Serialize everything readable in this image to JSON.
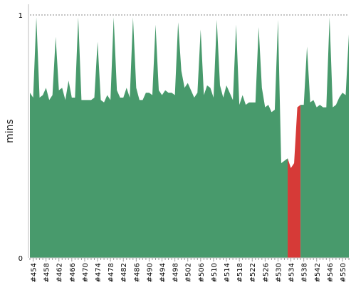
{
  "chart_data": {
    "type": "area",
    "ylabel": "mins",
    "ylim": [
      0,
      1
    ],
    "y_ticks": [
      "0",
      "1"
    ],
    "reference_line": 1,
    "grid": false,
    "x_tick_labels": [
      "#454",
      "#458",
      "#462",
      "#466",
      "#470",
      "#474",
      "#478",
      "#482",
      "#486",
      "#490",
      "#494",
      "#498",
      "#502",
      "#506",
      "#510",
      "#514",
      "#518",
      "#522",
      "#526",
      "#530",
      "#534",
      "#538",
      "#542",
      "#546",
      "#550"
    ],
    "colors": {
      "ok": "#489a6c",
      "fail": "#d63a37",
      "reference": "#8a8a8a"
    },
    "series": [
      {
        "x": [
          453,
          454,
          455,
          456,
          457,
          458,
          459,
          460,
          461,
          462,
          463,
          464,
          465,
          466,
          467,
          468,
          469,
          470,
          471,
          472,
          473,
          474,
          475,
          476,
          477,
          478,
          479,
          480,
          481,
          482,
          483,
          484,
          485,
          486,
          487,
          488,
          489,
          490,
          491,
          492,
          493,
          494,
          495,
          496,
          497,
          498,
          499,
          500,
          501,
          502,
          503,
          504,
          505,
          506,
          507,
          508,
          509,
          510,
          511,
          512,
          513,
          514,
          515,
          516,
          517,
          518,
          519,
          520,
          521,
          522,
          523,
          524,
          525,
          526,
          527,
          528,
          529,
          530,
          531,
          532,
          533,
          534,
          535,
          536,
          537,
          538,
          539,
          540,
          541,
          542,
          543,
          544,
          545,
          546,
          547,
          548,
          549,
          550,
          551,
          552
        ],
        "values": [
          0.68,
          0.66,
          0.99,
          0.66,
          0.67,
          0.7,
          0.65,
          0.67,
          0.91,
          0.69,
          0.7,
          0.65,
          0.73,
          0.66,
          0.66,
          0.99,
          0.65,
          0.65,
          0.65,
          0.65,
          0.66,
          0.89,
          0.65,
          0.64,
          0.67,
          0.65,
          0.99,
          0.69,
          0.66,
          0.66,
          0.7,
          0.66,
          0.99,
          0.7,
          0.65,
          0.65,
          0.68,
          0.68,
          0.67,
          0.96,
          0.69,
          0.67,
          0.69,
          0.68,
          0.68,
          0.67,
          0.97,
          0.77,
          0.7,
          0.72,
          0.69,
          0.66,
          0.68,
          0.94,
          0.67,
          0.71,
          0.7,
          0.66,
          0.98,
          0.71,
          0.66,
          0.71,
          0.68,
          0.65,
          0.96,
          0.63,
          0.67,
          0.63,
          0.64,
          0.64,
          0.64,
          0.95,
          0.7,
          0.62,
          0.63,
          0.6,
          0.61,
          0.98,
          0.39,
          0.4,
          0.41,
          0.37,
          0.39,
          0.62,
          0.63,
          0.63,
          0.87,
          0.64,
          0.65,
          0.62,
          0.63,
          0.62,
          0.62,
          0.99,
          0.62,
          0.63,
          0.66,
          0.68,
          0.67,
          0.92
        ],
        "fail_range": [
          533,
          536
        ]
      }
    ]
  }
}
